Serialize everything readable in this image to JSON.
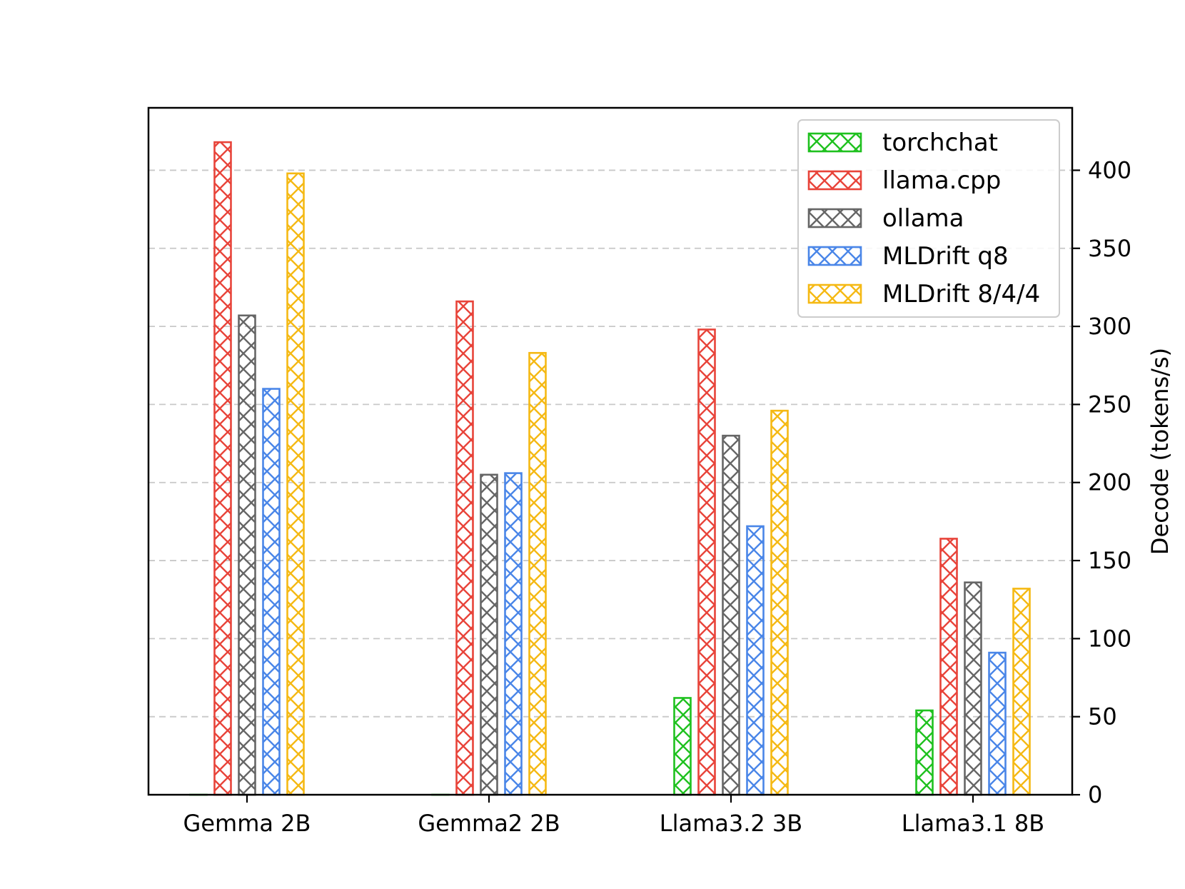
{
  "chart_data": {
    "type": "bar",
    "title": "",
    "xlabel": "",
    "ylabel": "Decode (tokens/s)",
    "ylim": [
      0,
      440
    ],
    "yticks": [
      0,
      50,
      100,
      150,
      200,
      250,
      300,
      350,
      400
    ],
    "ytick_labels": [
      "0",
      "50",
      "100",
      "150",
      "200",
      "250",
      "300",
      "350",
      "400"
    ],
    "y_axis_side": "right",
    "grid": "horizontal dashed",
    "legend_position": "top-right",
    "categories": [
      "Gemma 2B",
      "Gemma2 2B",
      "Llama3.2 3B",
      "Llama3.1 8B"
    ],
    "series": [
      {
        "name": "torchchat",
        "color": "#1fc11f",
        "values": [
          0,
          0,
          62,
          54
        ]
      },
      {
        "name": "llama.cpp",
        "color": "#e8443a",
        "values": [
          418,
          316,
          298,
          164
        ]
      },
      {
        "name": "ollama",
        "color": "#666666",
        "values": [
          307,
          205,
          230,
          136
        ]
      },
      {
        "name": "MLDrift q8",
        "color": "#4a86e8",
        "values": [
          260,
          206,
          172,
          91
        ]
      },
      {
        "name": "MLDrift 8/4/4",
        "color": "#f5b914",
        "values": [
          398,
          283,
          246,
          132
        ]
      }
    ]
  }
}
